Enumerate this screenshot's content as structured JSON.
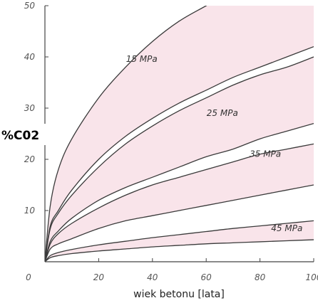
{
  "chart_data": {
    "type": "area",
    "xlabel": "wiek betonu [lata]",
    "ylabel": "%C02",
    "xlim": [
      0,
      100
    ],
    "ylim": [
      0,
      50
    ],
    "x_ticks": [
      "0",
      "20",
      "40",
      "60",
      "80",
      "100"
    ],
    "y_ticks": [
      "10",
      "20",
      "30",
      "40",
      "50"
    ],
    "grid": false,
    "fill_color": "#f9e4ea",
    "line_color": "#3a3a3a",
    "bands": [
      {
        "label": "15 MPa",
        "label_pos": [
          36,
          39
        ],
        "upper": {
          "x": [
            0,
            2,
            5,
            10,
            20,
            30,
            40,
            50,
            60,
            70,
            80,
            90,
            100
          ],
          "y": [
            0,
            11,
            18,
            24,
            32,
            38,
            43,
            47,
            50,
            53,
            56,
            58,
            60
          ]
        },
        "lower": {
          "x": [
            0,
            2,
            5,
            10,
            20,
            30,
            40,
            50,
            60,
            70,
            80,
            90,
            100
          ],
          "y": [
            0,
            7,
            10,
            14,
            20,
            24.5,
            28,
            31,
            33.5,
            36,
            38,
            40,
            42
          ]
        }
      },
      {
        "label": "25 MPa",
        "label_pos": [
          66,
          28.5
        ],
        "upper": {
          "x": [
            0,
            2,
            5,
            10,
            20,
            30,
            40,
            50,
            60,
            70,
            80,
            90,
            100
          ],
          "y": [
            0,
            6.5,
            9.5,
            13,
            18.5,
            23,
            26.5,
            29.5,
            32,
            34.5,
            36.5,
            38,
            40
          ]
        },
        "lower": {
          "x": [
            0,
            2,
            5,
            10,
            20,
            30,
            40,
            50,
            60,
            70,
            80,
            90,
            100
          ],
          "y": [
            0,
            4,
            6,
            8.5,
            12,
            14.5,
            16.5,
            18.5,
            20.5,
            22,
            24,
            25.5,
            27
          ]
        }
      },
      {
        "label": "35 MPa",
        "label_pos": [
          82,
          20.5
        ],
        "upper": {
          "x": [
            0,
            2,
            5,
            10,
            20,
            30,
            40,
            50,
            60,
            70,
            80,
            90,
            100
          ],
          "y": [
            0,
            3.5,
            5.5,
            7.5,
            10.5,
            13,
            15,
            16.5,
            18,
            19.5,
            21,
            22,
            23
          ]
        },
        "lower": {
          "x": [
            0,
            2,
            5,
            10,
            20,
            30,
            40,
            50,
            60,
            70,
            80,
            90,
            100
          ],
          "y": [
            0,
            2.5,
            3.5,
            4.5,
            6.5,
            8,
            9,
            10,
            11,
            12,
            13,
            14,
            15
          ]
        }
      },
      {
        "label": "45 MPa",
        "label_pos": [
          90,
          6
        ],
        "upper": {
          "x": [
            0,
            2,
            5,
            10,
            20,
            30,
            40,
            50,
            60,
            70,
            80,
            90,
            100
          ],
          "y": [
            0,
            1.2,
            1.8,
            2.4,
            3.3,
            4,
            4.7,
            5.3,
            5.9,
            6.5,
            7,
            7.5,
            8
          ]
        },
        "lower": {
          "x": [
            0,
            2,
            5,
            10,
            20,
            30,
            40,
            50,
            60,
            70,
            80,
            90,
            100
          ],
          "y": [
            0,
            0.8,
            1.2,
            1.6,
            2.1,
            2.5,
            2.9,
            3.2,
            3.5,
            3.7,
            3.9,
            4.1,
            4.3
          ]
        }
      }
    ]
  }
}
